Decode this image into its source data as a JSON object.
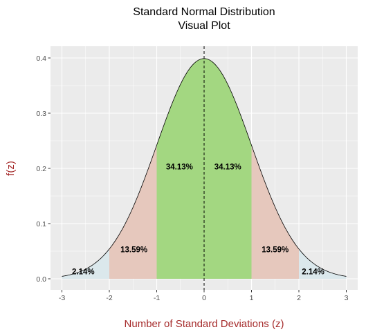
{
  "chart_data": {
    "type": "area",
    "title": [
      "Standard Normal Distribution",
      "Visual Plot"
    ],
    "xlabel": "Number of Standard Deviations (z)",
    "ylabel": "f(z)",
    "xlim": [
      -3,
      3
    ],
    "ylim": [
      0,
      0.4
    ],
    "x_ticks": [
      -3,
      -2,
      -1,
      0,
      1,
      2,
      3
    ],
    "y_ticks": [
      0.0,
      0.1,
      0.2,
      0.3,
      0.4
    ],
    "y_tick_labels": [
      "0.0",
      "0.1",
      "0.2",
      "0.3",
      "0.4"
    ],
    "grid": true,
    "mean_line": 0,
    "regions": [
      {
        "from": -3,
        "to": -2,
        "label": "2.14%",
        "label_x": -2.55,
        "label_y": 0.008,
        "color": "#dbe8ec"
      },
      {
        "from": -2,
        "to": -1,
        "label": "13.59%",
        "label_x": -1.48,
        "label_y": 0.048,
        "color": "#e6c8bd"
      },
      {
        "from": -1,
        "to": 0,
        "label": "34.13%",
        "label_x": -0.52,
        "label_y": 0.198,
        "color": "#a3d781"
      },
      {
        "from": 0,
        "to": 1,
        "label": "34.13%",
        "label_x": 0.5,
        "label_y": 0.198,
        "color": "#a3d781"
      },
      {
        "from": 1,
        "to": 2,
        "label": "13.59%",
        "label_x": 1.5,
        "label_y": 0.048,
        "color": "#e6c8bd"
      },
      {
        "from": 2,
        "to": 3,
        "label": "2.14%",
        "label_x": 2.3,
        "label_y": 0.008,
        "color": "#dbe8ec"
      }
    ],
    "colors": {
      "panel": "#ebebeb",
      "grid_major": "#ffffff",
      "curve": "#000000",
      "axis_label": "#a52a2a"
    }
  }
}
